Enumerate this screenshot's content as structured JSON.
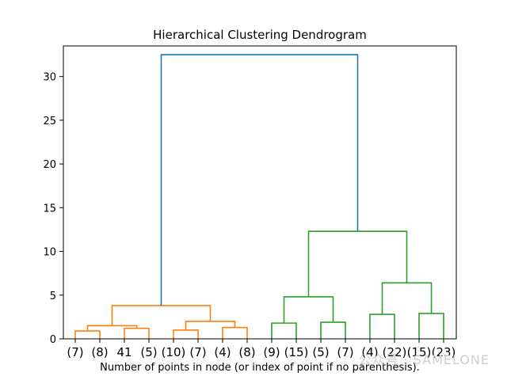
{
  "chart_data": {
    "type": "dendrogram",
    "title": "Hierarchical Clustering Dendrogram",
    "xlabel": "Number of points in node (or index of point if no parenthesis).",
    "ylabel": "",
    "ylim": [
      0,
      33.5
    ],
    "yticks": [
      0,
      5,
      10,
      15,
      20,
      25,
      30
    ],
    "grid": false,
    "leaf_labels": [
      "(7)",
      "(8)",
      "41",
      "(5)",
      "(10)",
      "(7)",
      "(4)",
      "(8)",
      "(9)",
      "(15)",
      "(5)",
      "(7)",
      "(4)",
      "(22)",
      "(15)",
      "(23)"
    ],
    "cluster_colors": {
      "left": "#ff7f0e",
      "right": "#2ca02c",
      "root": "#1f77b4"
    },
    "merges": [
      {
        "left_leaf": 0,
        "right_leaf": 1,
        "height": 0.9,
        "color": "#ff7f0e"
      },
      {
        "left_leaf": 2,
        "right_leaf": 3,
        "height": 1.2,
        "color": "#ff7f0e"
      },
      {
        "left_node": 0,
        "right_node": 1,
        "height": 1.5,
        "color": "#ff7f0e"
      },
      {
        "left_leaf": 4,
        "right_leaf": 5,
        "height": 1.0,
        "color": "#ff7f0e"
      },
      {
        "left_leaf": 6,
        "right_leaf": 7,
        "height": 1.3,
        "color": "#ff7f0e"
      },
      {
        "left_node": 3,
        "right_node": 4,
        "height": 2.0,
        "color": "#ff7f0e"
      },
      {
        "left_node": 2,
        "right_node": 5,
        "height": 3.8,
        "color": "#ff7f0e"
      },
      {
        "left_leaf": 8,
        "right_leaf": 9,
        "height": 1.8,
        "color": "#2ca02c"
      },
      {
        "left_leaf": 10,
        "right_leaf": 11,
        "height": 1.9,
        "color": "#2ca02c"
      },
      {
        "left_node": 7,
        "right_node": 8,
        "height": 4.8,
        "color": "#2ca02c"
      },
      {
        "left_leaf": 12,
        "right_leaf": 13,
        "height": 2.8,
        "color": "#2ca02c"
      },
      {
        "left_leaf": 14,
        "right_leaf": 15,
        "height": 2.9,
        "color": "#2ca02c"
      },
      {
        "left_node": 10,
        "right_node": 11,
        "height": 6.4,
        "color": "#2ca02c"
      },
      {
        "left_node": 9,
        "right_node": 12,
        "height": 12.3,
        "color": "#2ca02c"
      },
      {
        "left_node": 6,
        "right_node": 13,
        "height": 32.5,
        "color": "#1f77b4"
      }
    ]
  },
  "watermark": "公众号 · SAMELONE"
}
